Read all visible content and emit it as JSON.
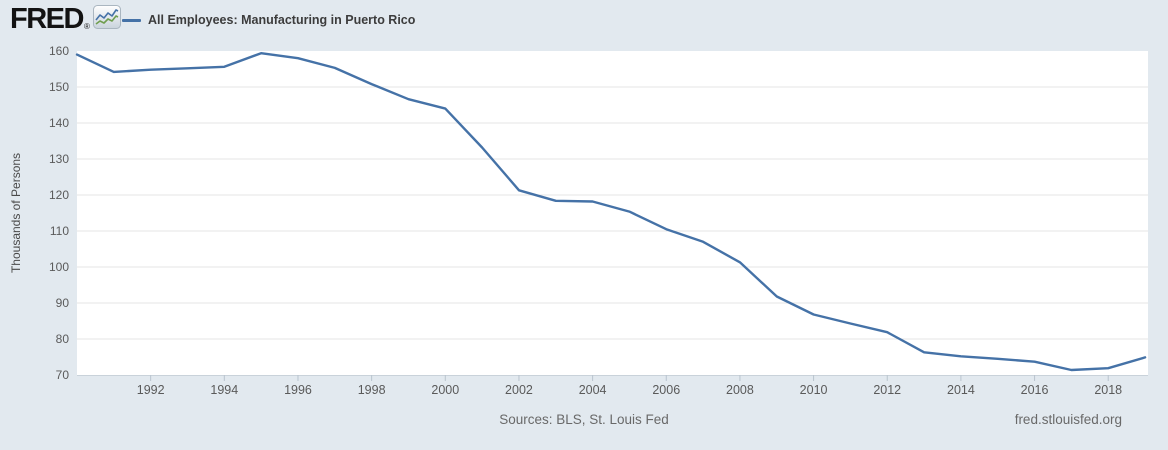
{
  "header": {
    "logo_text": "FRED",
    "registered_mark": "®",
    "legend": {
      "label": "All Employees: Manufacturing in Puerto Rico",
      "swatch_color": "#4572a7"
    }
  },
  "chart_data": {
    "type": "line",
    "title": "All Employees: Manufacturing in Puerto Rico",
    "ylabel": "Thousands of Persons",
    "xlabel": "",
    "x": [
      1990,
      1991,
      1992,
      1993,
      1994,
      1995,
      1996,
      1997,
      1998,
      1999,
      2000,
      2001,
      2002,
      2003,
      2004,
      2005,
      2006,
      2007,
      2008,
      2009,
      2010,
      2011,
      2012,
      2013,
      2014,
      2015,
      2016,
      2017,
      2018,
      2019
    ],
    "values": [
      159.0,
      154.2,
      154.8,
      155.2,
      155.6,
      159.4,
      158.0,
      155.3,
      150.8,
      146.6,
      144.0,
      133.2,
      121.3,
      118.4,
      118.2,
      115.4,
      110.5,
      107.0,
      101.3,
      91.8,
      86.8,
      84.3,
      81.9,
      76.3,
      75.2,
      74.5,
      73.7,
      71.4,
      71.9,
      74.9
    ],
    "ylim": [
      70,
      160
    ],
    "xlim": [
      1990,
      2019.08
    ],
    "yticks": [
      70,
      80,
      90,
      100,
      110,
      120,
      130,
      140,
      150,
      160
    ],
    "xticks": [
      1992,
      1994,
      1996,
      1998,
      2000,
      2002,
      2004,
      2006,
      2008,
      2010,
      2012,
      2014,
      2016,
      2018
    ],
    "grid": true,
    "legend_position": "top-left",
    "line_color": "#4572a7",
    "series_name": "All Employees: Manufacturing in Puerto Rico"
  },
  "footer": {
    "sources": "Sources: BLS, St. Louis Fed",
    "link": "fred.stlouisfed.org"
  },
  "colors": {
    "background": "#e2e9ef",
    "plot_background": "#ffffff",
    "gridline": "#e6e6e6",
    "axis_line": "#c9d2da",
    "tick_mark": "#b9c4ce",
    "tick_label": "#5a5a5a",
    "axis_title": "#4a4a4a",
    "line": "#4572a7"
  }
}
